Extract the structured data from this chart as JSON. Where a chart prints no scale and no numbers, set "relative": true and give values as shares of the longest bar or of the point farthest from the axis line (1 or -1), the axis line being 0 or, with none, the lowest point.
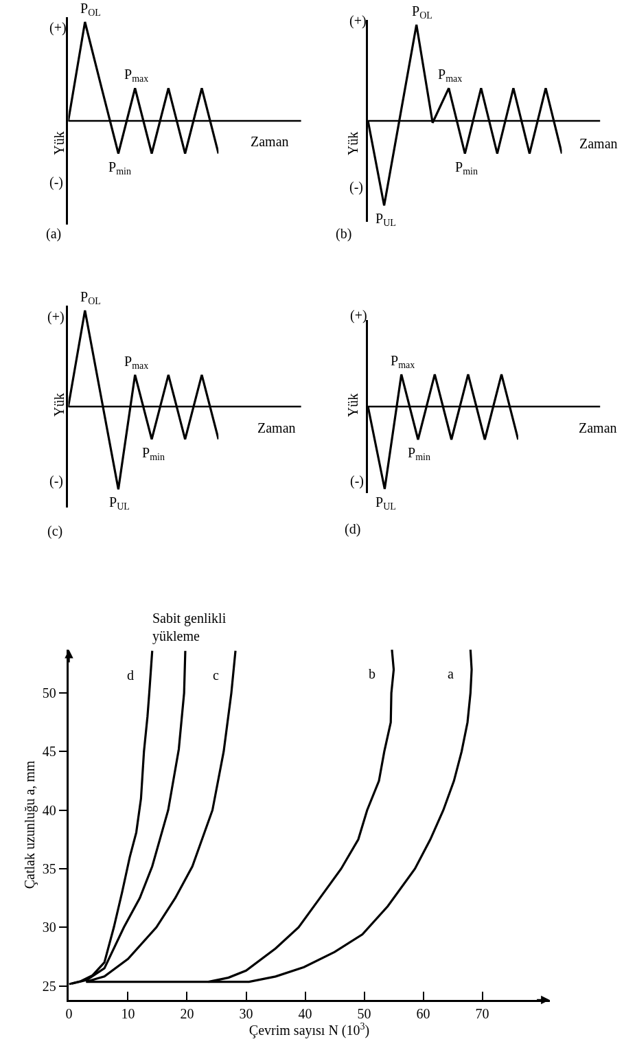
{
  "chart_data": [
    {
      "type": "line",
      "relative": true,
      "xlabel": "Zaman",
      "ylabel": "Yük",
      "categories": [
        null,
        null,
        null,
        null,
        null,
        null,
        null,
        null,
        null,
        null
      ],
      "series": [
        {
          "color": "#000000",
          "values": [
            0,
            1,
            0.33,
            -0.33,
            0.33,
            -0.33,
            0.33,
            -0.33,
            0.33,
            -0.33
          ]
        }
      ],
      "annotations": [
        "(+)",
        "(-)",
        "(a)",
        "P$_{OL}$",
        {
          "text": "P$_{max}$",
          "y": 0.33
        },
        {
          "text": "P$_{min}$",
          "y": -0.33
        }
      ]
    },
    {
      "type": "line",
      "relative": true,
      "xlabel": "Zaman",
      "ylabel": "Yük",
      "categories": [
        null,
        null,
        null,
        null,
        null,
        null,
        null,
        null,
        null,
        null,
        null,
        null,
        null
      ],
      "series": [
        {
          "color": "#000000",
          "values": [
            0,
            -0.88,
            0.06,
            1,
            -0.02,
            0.34,
            -0.34,
            0.34,
            -0.34,
            0.34,
            -0.34,
            0.34,
            -0.34
          ]
        }
      ],
      "annotations": [
        "(+)",
        "(-)",
        "(b)",
        "P$_{OL}$",
        {
          "text": "P$_{max}$",
          "y": 0.34
        },
        {
          "text": "P$_{min}$",
          "y": -0.34
        },
        {
          "text": "P$_{UL}$",
          "y": -0.88
        }
      ]
    },
    {
      "type": "line",
      "relative": true,
      "xlabel": "Zaman",
      "ylabel": "Yük",
      "categories": [
        null,
        null,
        null,
        null,
        null,
        null,
        null,
        null,
        null,
        null
      ],
      "series": [
        {
          "color": "#000000",
          "values": [
            0,
            1,
            0.07,
            -0.86,
            0.33,
            -0.34,
            0.33,
            -0.34,
            0.33,
            -0.34
          ]
        }
      ],
      "annotations": [
        "(+)",
        "(-)",
        "(c)",
        "P$_{OL}$",
        {
          "text": "P$_{max}$",
          "y": 0.33
        },
        {
          "text": "P$_{min}$",
          "y": -0.34
        },
        {
          "text": "P$_{UL}$",
          "y": -0.86
        }
      ]
    },
    {
      "type": "line",
      "relative": true,
      "xlabel": "Zaman",
      "ylabel": "Yük",
      "categories": [
        null,
        null,
        null,
        null,
        null,
        null,
        null,
        null,
        null,
        null
      ],
      "series": [
        {
          "color": "#000000",
          "values": [
            0,
            -1,
            0.39,
            -0.4,
            0.39,
            -0.4,
            0.39,
            -0.4,
            0.39,
            -0.4
          ]
        }
      ],
      "annotations": [
        "(+)",
        "(-)",
        "(d)",
        {
          "text": "P$_{max}$",
          "y": 0.39
        },
        {
          "text": "P$_{min}$",
          "y": -0.4
        },
        {
          "text": "P$_{UL}$",
          "y": -1
        }
      ]
    },
    {
      "type": "line",
      "xlabel": "Çevrim sayısı N (10$^{3}$)",
      "ylabel": "Çatlak uzunluğu a, mm",
      "xlim": [
        0,
        81.4
      ],
      "ylim": [
        23.8,
        53.7
      ],
      "xticks": [
        0,
        10,
        20,
        30,
        40,
        50,
        60,
        70
      ],
      "yticks": [
        25,
        30,
        35,
        40,
        45,
        50
      ],
      "series": [
        {
          "name": "d",
          "color": "#000000",
          "x": [
            0,
            2,
            4,
            6,
            7.6,
            9,
            10.3,
            11.4,
            12.2,
            12.7,
            13.3,
            13.6,
            14.1
          ],
          "values": [
            25.15,
            25.4,
            25.9,
            27,
            30,
            33,
            36,
            38.1,
            41,
            45,
            48,
            50,
            53.6
          ]
        },
        {
          "name": "Sabit genlikli yükleme",
          "color": "#000000",
          "x": [
            0.5,
            3,
            6,
            9.3,
            12,
            14.1,
            16.8,
            18.6,
            19.5,
            19.7
          ],
          "values": [
            25.2,
            25.5,
            26.5,
            30,
            32.5,
            35.2,
            40,
            45.2,
            50,
            53.6
          ]
        },
        {
          "name": "c",
          "color": "#000000",
          "x": [
            2.9,
            6,
            10,
            14.8,
            18,
            20.9,
            24.3,
            26.2,
            27.5,
            28.2
          ],
          "values": [
            25.35,
            25.8,
            27.3,
            30,
            32.5,
            35.2,
            40,
            45,
            50,
            53.6
          ]
        },
        {
          "name": "b",
          "color": "#000000",
          "x": [
            23.6,
            27,
            30,
            35,
            38.9,
            42.5,
            46.1,
            49,
            50.5,
            52.5,
            53.4,
            54.5,
            54.6,
            55,
            54.7
          ],
          "values": [
            25.35,
            25.7,
            26.3,
            28.2,
            30,
            32.5,
            35,
            37.5,
            40,
            42.5,
            45,
            47.5,
            50,
            52,
            53.7
          ]
        },
        {
          "name": "a",
          "color": "#000000",
          "x": [
            2.9,
            30.5,
            35,
            39.8,
            45,
            49.7,
            54,
            58.6,
            61.2,
            63.4,
            65.2,
            66.5,
            67.5,
            68,
            68.2,
            68
          ],
          "values": [
            25.35,
            25.35,
            25.8,
            26.6,
            27.9,
            29.4,
            31.8,
            35,
            37.5,
            40,
            42.5,
            45,
            47.5,
            50,
            52,
            53.7
          ]
        }
      ]
    }
  ]
}
